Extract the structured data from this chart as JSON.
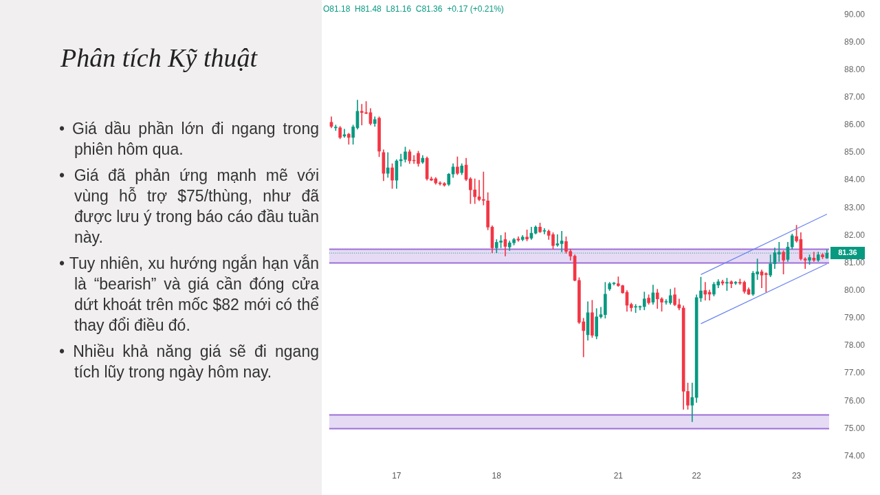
{
  "chart_data": {
    "type": "candlestick",
    "title": "Phân tích Kỹ thuật",
    "subtitle": "O81.18  H81.48  L81.16  C81.36  +0.17 (+0.21%)",
    "annotations": [
      "• Giá dầu phần lớn đi ngang trong phiên hôm qua.",
      "• Giá đã phản ứng mạnh mẽ với vùng hỗ trợ $75/thùng, như đã được lưu ý trong báo cáo đầu tuần này.",
      "• Tuy nhiên, xu hướng ngắn hạn vẫn là “bearish” và giá cần đóng cửa dứt khoát trên mốc $82 mới có thể thay đổi điều đó.",
      "• Nhiều khả năng giá sẽ đi ngang tích lũy trong ngày hôm nay."
    ],
    "categories": [
      null,
      null,
      null,
      null,
      null,
      null,
      null,
      null,
      null,
      null,
      null,
      null,
      null,
      null,
      null,
      "17",
      null,
      null,
      null,
      null,
      null,
      null,
      null,
      null,
      null,
      null,
      null,
      null,
      null,
      null,
      null,
      null,
      null,
      null,
      null,
      null,
      null,
      null,
      "18",
      null,
      null,
      null,
      null,
      null,
      null,
      null,
      null,
      null,
      null,
      null,
      null,
      null,
      null,
      null,
      null,
      null,
      null,
      null,
      null,
      null,
      null,
      null,
      null,
      null,
      null,
      null,
      "21",
      null,
      null,
      null,
      null,
      null,
      null,
      null,
      null,
      null,
      null,
      null,
      null,
      null,
      null,
      null,
      null,
      null,
      "22",
      null,
      null,
      null,
      null,
      null,
      null,
      null,
      null,
      null,
      null,
      null,
      null,
      null,
      null,
      null,
      null,
      null,
      null,
      null,
      null,
      null,
      null,
      "23",
      null,
      null,
      null,
      null,
      null,
      null,
      null
    ],
    "ohlc": [
      [
        86.1,
        86.3,
        85.9,
        85.95
      ],
      [
        85.9,
        86.0,
        85.8,
        85.9
      ],
      [
        85.9,
        85.95,
        85.5,
        85.55
      ],
      [
        85.6,
        85.85,
        85.55,
        85.65
      ],
      [
        85.67,
        85.7,
        85.3,
        85.55
      ],
      [
        85.55,
        86.0,
        85.3,
        85.93
      ],
      [
        85.9,
        86.9,
        85.85,
        86.5
      ],
      [
        86.5,
        86.75,
        86.0,
        86.45
      ],
      [
        86.45,
        86.85,
        86.4,
        86.42
      ],
      [
        86.45,
        86.6,
        86.0,
        86.05
      ],
      [
        86.05,
        86.3,
        85.95,
        86.2
      ],
      [
        86.25,
        86.3,
        84.85,
        85.05
      ],
      [
        85.0,
        85.1,
        83.98,
        84.25
      ],
      [
        84.25,
        85.0,
        84.1,
        84.45
      ],
      [
        84.45,
        84.6,
        83.7,
        84.0
      ],
      [
        84.0,
        84.75,
        83.7,
        84.7
      ],
      [
        84.7,
        84.95,
        84.5,
        84.75
      ],
      [
        84.75,
        85.2,
        84.65,
        85.03
      ],
      [
        85.03,
        85.1,
        84.6,
        84.7
      ],
      [
        84.72,
        84.9,
        84.6,
        84.7
      ],
      [
        84.97,
        85.05,
        84.5,
        84.6
      ],
      [
        84.65,
        84.9,
        84.6,
        84.8
      ],
      [
        84.8,
        84.85,
        84.0,
        84.05
      ],
      [
        84.05,
        84.12,
        83.98,
        84.0
      ],
      [
        84.05,
        84.1,
        83.85,
        83.9
      ],
      [
        83.9,
        83.95,
        83.82,
        83.87
      ],
      [
        83.88,
        83.92,
        83.78,
        83.82
      ],
      [
        83.85,
        84.25,
        83.8,
        84.22
      ],
      [
        84.22,
        84.6,
        84.1,
        84.48
      ],
      [
        84.48,
        84.85,
        84.2,
        84.25
      ],
      [
        84.27,
        84.6,
        84.2,
        84.52
      ],
      [
        84.55,
        84.8,
        83.98,
        84.03
      ],
      [
        84.05,
        84.1,
        83.15,
        83.65
      ],
      [
        83.65,
        84.05,
        83.15,
        83.4
      ],
      [
        83.4,
        84.0,
        83.25,
        83.3
      ],
      [
        83.3,
        84.3,
        83.1,
        83.27
      ],
      [
        83.25,
        83.55,
        82.2,
        82.3
      ],
      [
        82.3,
        82.35,
        81.37,
        81.55
      ],
      [
        81.55,
        81.85,
        81.37,
        81.75
      ],
      [
        81.75,
        82.0,
        81.55,
        81.8
      ],
      [
        81.85,
        82.1,
        81.25,
        81.6
      ],
      [
        81.58,
        81.8,
        81.45,
        81.73
      ],
      [
        81.73,
        81.9,
        81.65,
        81.85
      ],
      [
        81.87,
        81.95,
        81.78,
        81.83
      ],
      [
        81.85,
        82.0,
        81.8,
        81.94
      ],
      [
        81.94,
        82.2,
        81.8,
        81.87
      ],
      [
        81.9,
        82.3,
        81.85,
        82.08
      ],
      [
        82.08,
        82.35,
        82.05,
        82.3
      ],
      [
        82.3,
        82.45,
        82.1,
        82.13
      ],
      [
        82.15,
        82.25,
        82.05,
        82.15
      ],
      [
        82.15,
        82.2,
        81.85,
        82.0
      ],
      [
        82.03,
        82.1,
        81.5,
        81.63
      ],
      [
        81.65,
        82.03,
        81.6,
        81.7
      ],
      [
        81.7,
        82.15,
        81.4,
        81.8
      ],
      [
        81.78,
        81.95,
        81.35,
        81.42
      ],
      [
        81.42,
        81.5,
        81.1,
        81.25
      ],
      [
        81.25,
        81.3,
        80.35,
        80.37
      ],
      [
        80.37,
        80.47,
        78.8,
        78.85
      ],
      [
        78.87,
        79.0,
        77.6,
        78.55
      ],
      [
        78.4,
        79.6,
        78.2,
        79.2
      ],
      [
        79.2,
        79.65,
        78.3,
        78.38
      ],
      [
        78.35,
        79.35,
        78.25,
        79.05
      ],
      [
        79.05,
        79.4,
        79.0,
        79.13
      ],
      [
        79.13,
        80.3,
        79.0,
        79.87
      ],
      [
        80.06,
        80.3,
        80.0,
        80.25
      ],
      [
        80.25,
        80.3,
        80.2,
        80.25
      ],
      [
        80.25,
        80.5,
        80.15,
        80.18
      ],
      [
        80.18,
        80.2,
        79.9,
        79.92
      ],
      [
        79.94,
        80.0,
        79.25,
        79.47
      ],
      [
        79.5,
        79.55,
        79.25,
        79.38
      ],
      [
        79.4,
        79.5,
        79.2,
        79.4
      ],
      [
        79.4,
        79.45,
        79.3,
        79.42
      ],
      [
        79.42,
        79.95,
        79.3,
        79.7
      ],
      [
        79.73,
        79.85,
        79.5,
        79.56
      ],
      [
        79.58,
        80.2,
        79.5,
        79.92
      ],
      [
        79.92,
        80.05,
        79.35,
        79.7
      ],
      [
        79.7,
        79.75,
        79.25,
        79.58
      ],
      [
        79.58,
        79.68,
        79.5,
        79.6
      ],
      [
        79.56,
        80.05,
        79.5,
        79.82
      ],
      [
        79.85,
        80.1,
        79.45,
        79.49
      ],
      [
        79.49,
        79.7,
        79.3,
        79.37
      ],
      [
        79.37,
        79.45,
        75.7,
        76.35
      ],
      [
        76.35,
        76.65,
        75.7,
        75.85
      ],
      [
        75.85,
        76.65,
        75.25,
        76.13
      ],
      [
        76.13,
        79.85,
        75.95,
        79.75
      ],
      [
        79.73,
        80.49,
        79.6,
        79.99
      ],
      [
        80.0,
        80.3,
        79.65,
        79.87
      ],
      [
        79.94,
        80.02,
        79.65,
        79.87
      ],
      [
        79.87,
        80.3,
        79.8,
        80.23
      ],
      [
        80.2,
        80.4,
        80.1,
        80.32
      ],
      [
        80.32,
        80.38,
        80.2,
        80.27
      ],
      [
        80.27,
        80.45,
        80.0,
        80.3
      ],
      [
        80.32,
        80.36,
        80.1,
        80.25
      ],
      [
        80.27,
        80.33,
        80.22,
        80.3
      ],
      [
        80.3,
        80.42,
        80.22,
        80.27
      ],
      [
        80.3,
        80.35,
        79.9,
        79.97
      ],
      [
        80.04,
        80.1,
        79.85,
        79.87
      ],
      [
        79.87,
        80.7,
        79.82,
        80.63
      ],
      [
        80.6,
        81.15,
        80.4,
        80.68
      ],
      [
        80.68,
        80.75,
        80.1,
        80.56
      ],
      [
        80.62,
        80.65,
        79.95,
        80.58
      ],
      [
        80.56,
        81.3,
        80.5,
        80.97
      ],
      [
        80.97,
        81.55,
        80.8,
        81.37
      ],
      [
        81.32,
        81.75,
        81.05,
        81.39
      ],
      [
        81.39,
        81.45,
        80.6,
        81.1
      ],
      [
        81.13,
        81.75,
        81.05,
        81.58
      ],
      [
        81.58,
        82.05,
        81.5,
        81.99
      ],
      [
        81.96,
        82.37,
        81.75,
        81.8
      ],
      [
        81.85,
        82.1,
        81.1,
        81.15
      ],
      [
        81.15,
        81.2,
        80.8,
        81.1
      ],
      [
        81.1,
        81.3,
        80.95,
        81.2
      ],
      [
        81.18,
        81.4,
        81.05,
        81.1
      ],
      [
        81.1,
        81.4,
        81.05,
        81.3
      ],
      [
        81.3,
        81.35,
        81.15,
        81.22
      ],
      [
        81.18,
        81.48,
        81.16,
        81.36
      ]
    ],
    "series": [
      {
        "type": "line",
        "color": "#6b86f0",
        "values": [
          null,
          null,
          null,
          null,
          null,
          null,
          null,
          null,
          null,
          null,
          null,
          null,
          null,
          null,
          null,
          null,
          null,
          null,
          null,
          null,
          null,
          null,
          null,
          null,
          null,
          null,
          null,
          null,
          null,
          null,
          null,
          null,
          null,
          null,
          null,
          null,
          null,
          null,
          null,
          null,
          null,
          null,
          null,
          null,
          null,
          null,
          null,
          null,
          null,
          null,
          null,
          null,
          null,
          null,
          null,
          null,
          null,
          null,
          null,
          null,
          null,
          null,
          null,
          null,
          null,
          null,
          null,
          null,
          null,
          null,
          null,
          null,
          null,
          null,
          null,
          null,
          null,
          null,
          null,
          null,
          null,
          null,
          null,
          null,
          null,
          80.58,
          null,
          null,
          null,
          null,
          null,
          null,
          null,
          null,
          null,
          null,
          null,
          null,
          null,
          null,
          null,
          null,
          null,
          null,
          null,
          null,
          null,
          null,
          null,
          null,
          null,
          null,
          null,
          null,
          82.77
        ]
      },
      {
        "type": "line",
        "color": "#6b86f0",
        "values": [
          null,
          null,
          null,
          null,
          null,
          null,
          null,
          null,
          null,
          null,
          null,
          null,
          null,
          null,
          null,
          null,
          null,
          null,
          null,
          null,
          null,
          null,
          null,
          null,
          null,
          null,
          null,
          null,
          null,
          null,
          null,
          null,
          null,
          null,
          null,
          null,
          null,
          null,
          null,
          null,
          null,
          null,
          null,
          null,
          null,
          null,
          null,
          null,
          null,
          null,
          null,
          null,
          null,
          null,
          null,
          null,
          null,
          null,
          null,
          null,
          null,
          null,
          null,
          null,
          null,
          null,
          null,
          null,
          null,
          null,
          null,
          null,
          null,
          null,
          null,
          null,
          null,
          null,
          null,
          null,
          null,
          null,
          null,
          null,
          null,
          78.8,
          null,
          null,
          null,
          null,
          null,
          null,
          null,
          null,
          null,
          null,
          null,
          null,
          null,
          null,
          null,
          null,
          null,
          null,
          null,
          null,
          null,
          null,
          null,
          null,
          null,
          null,
          null,
          null,
          80.97
        ]
      }
    ],
    "bands": [
      {
        "axis": "y",
        "from": 81.0,
        "to": 81.5,
        "color": "#9c6fd6"
      },
      {
        "axis": "y",
        "from": 75.0,
        "to": 75.5,
        "color": "#9c6fd6"
      }
    ],
    "ref_lines": [
      {
        "axis": "y",
        "value": 81.36,
        "label": "81.36",
        "color": "#089981",
        "line_style": "dotted"
      }
    ],
    "ylim": [
      74,
      90
    ],
    "yticks": [
      {
        "value": 74,
        "label": "74.00"
      },
      {
        "value": 75,
        "label": "75.00"
      },
      {
        "value": 76,
        "label": "76.00"
      },
      {
        "value": 77,
        "label": "77.00"
      },
      {
        "value": 78,
        "label": "78.00"
      },
      {
        "value": 79,
        "label": "79.00"
      },
      {
        "value": 80,
        "label": "80.00"
      },
      {
        "value": 81,
        "label": "81.00"
      },
      {
        "value": 82,
        "label": "82.00"
      },
      {
        "value": 83,
        "label": "83.00"
      },
      {
        "value": 84,
        "label": "84.00"
      },
      {
        "value": 85,
        "label": "85.00"
      },
      {
        "value": 86,
        "label": "86.00"
      },
      {
        "value": 87,
        "label": "87.00"
      },
      {
        "value": 88,
        "label": "88.00"
      },
      {
        "value": 89,
        "label": "89.00"
      },
      {
        "value": 90,
        "label": "90.00"
      }
    ]
  }
}
